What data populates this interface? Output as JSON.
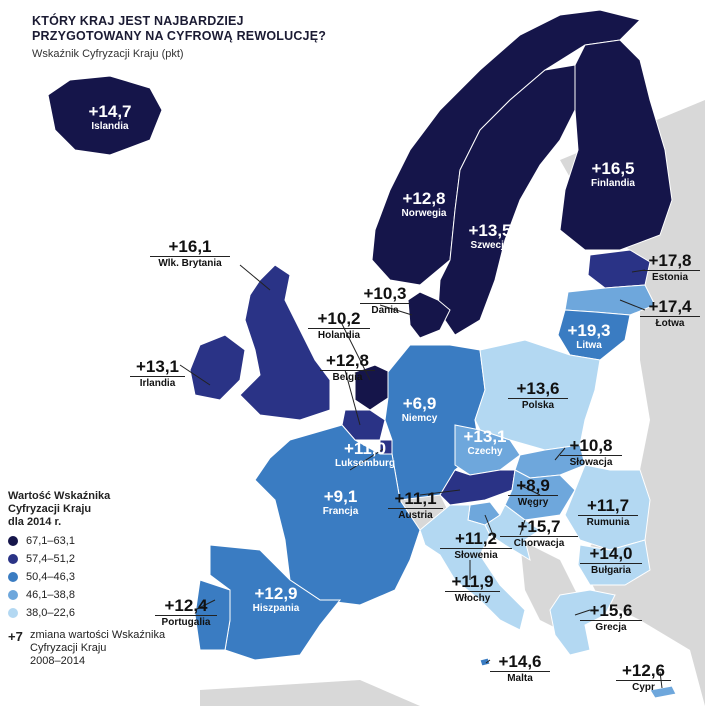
{
  "title": "KTÓRY KRAJ JEST NAJBARDZIEJ\nPRZYGOTOWANY NA CYFROWĄ REWOLUCJĘ?",
  "subtitle": "Wskaźnik Cyfryzacji Kraju (pkt)",
  "colors": {
    "c1": "#15154a",
    "c2": "#2a3386",
    "c3": "#3a7cc2",
    "c4": "#6ea7dc",
    "c5": "#b3d8f2",
    "nodata": "#d8d8d8",
    "sea": "#ffffff"
  },
  "legend": {
    "title": "Wartość Wskaźnika\nCyfryzacji Kraju\ndla 2014 r.",
    "items": [
      {
        "range": "67,1–63,1",
        "color": "#15154a"
      },
      {
        "range": "57,4–51,2",
        "color": "#2a3386"
      },
      {
        "range": "50,4–46,3",
        "color": "#3a7cc2"
      },
      {
        "range": "46,1–38,8",
        "color": "#6ea7dc"
      },
      {
        "range": "38,0–22,6",
        "color": "#b3d8f2"
      }
    ],
    "change_symbol": "+7",
    "change_desc": "zmiana wartości Wskaźnika\nCyfryzacji Kraju\n2008–2014"
  },
  "countries": [
    {
      "id": "islandia",
      "name": "Islandia",
      "change": "+14,7",
      "cls": "c1"
    },
    {
      "id": "norwegia",
      "name": "Norwegia",
      "change": "+12,8",
      "cls": "c1"
    },
    {
      "id": "szwecja",
      "name": "Szwecja",
      "change": "+13,5",
      "cls": "c1"
    },
    {
      "id": "finlandia",
      "name": "Finlandia",
      "change": "+16,5",
      "cls": "c1"
    },
    {
      "id": "wlk-brytania",
      "name": "Wlk. Brytania",
      "change": "+16,1",
      "cls": "c2"
    },
    {
      "id": "estonia",
      "name": "Estonia",
      "change": "+17,8",
      "cls": "c2"
    },
    {
      "id": "dania",
      "name": "Dania",
      "change": "+10,3",
      "cls": "c1"
    },
    {
      "id": "lotwa",
      "name": "Łotwa",
      "change": "+17,4",
      "cls": "c4"
    },
    {
      "id": "holandia",
      "name": "Holandia",
      "change": "+10,2",
      "cls": "c1"
    },
    {
      "id": "litwa",
      "name": "Litwa",
      "change": "+19,3",
      "cls": "c3"
    },
    {
      "id": "irlandia",
      "name": "Irlandia",
      "change": "+13,1",
      "cls": "c2"
    },
    {
      "id": "belgia",
      "name": "Belgia",
      "change": "+12,8",
      "cls": "c2"
    },
    {
      "id": "niemcy",
      "name": "Niemcy",
      "change": "+6,9",
      "cls": "c3"
    },
    {
      "id": "polska",
      "name": "Polska",
      "change": "+13,6",
      "cls": "c5"
    },
    {
      "id": "czechy",
      "name": "Czechy",
      "change": "+13,1",
      "cls": "c4"
    },
    {
      "id": "slowacja",
      "name": "Słowacja",
      "change": "+10,8",
      "cls": "c4"
    },
    {
      "id": "luksemburg",
      "name": "Luksemburg",
      "change": "+11,0",
      "cls": "c2"
    },
    {
      "id": "francja",
      "name": "Francja",
      "change": "+9,1",
      "cls": "c3"
    },
    {
      "id": "austria",
      "name": "Austria",
      "change": "+11,1",
      "cls": "c2"
    },
    {
      "id": "wegry",
      "name": "Węgry",
      "change": "+8,9",
      "cls": "c4"
    },
    {
      "id": "rumunia",
      "name": "Rumunia",
      "change": "+11,7",
      "cls": "c5"
    },
    {
      "id": "slowenia",
      "name": "Słowenia",
      "change": "+11,2",
      "cls": "c4"
    },
    {
      "id": "chorwacja",
      "name": "Chorwacja",
      "change": "+15,7",
      "cls": "c5"
    },
    {
      "id": "bulgaria",
      "name": "Bułgaria",
      "change": "+14,0",
      "cls": "c5"
    },
    {
      "id": "wlochy",
      "name": "Włochy",
      "change": "+11,9",
      "cls": "c5"
    },
    {
      "id": "hiszpania",
      "name": "Hiszpania",
      "change": "+12,9",
      "cls": "c3"
    },
    {
      "id": "portugalia",
      "name": "Portugalia",
      "change": "+12,4",
      "cls": "c3"
    },
    {
      "id": "grecja",
      "name": "Grecja",
      "change": "+15,6",
      "cls": "c5"
    },
    {
      "id": "malta",
      "name": "Malta",
      "change": "+14,6",
      "cls": "c3"
    },
    {
      "id": "cypr",
      "name": "Cypr",
      "change": "+12,6",
      "cls": "c4"
    }
  ]
}
